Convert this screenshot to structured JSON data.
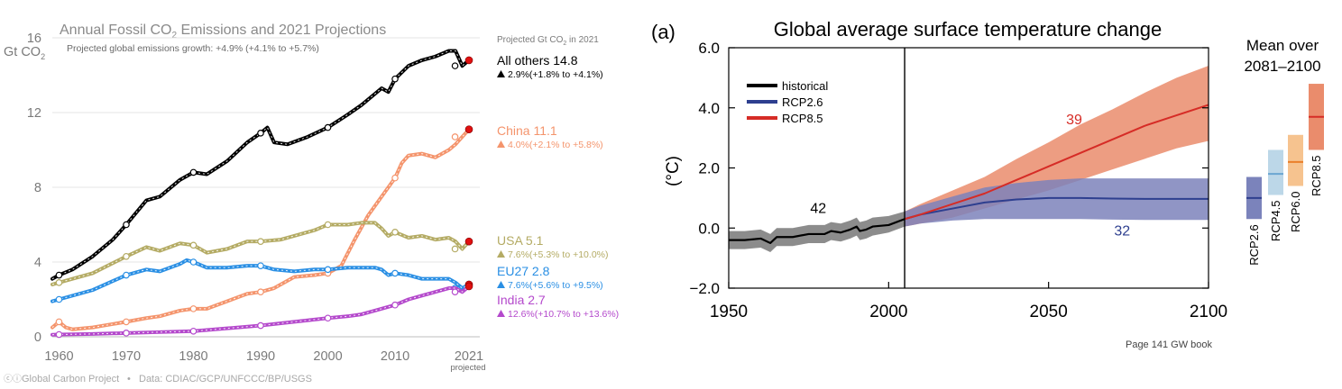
{
  "charts": {
    "left": {
      "title_main": "Annual Fossil CO",
      "title_sub": "2",
      "title_tail": " Emissions and 2021 Projections",
      "growth_note": "Projected global emissions growth: +4.9% (+4.1% to +5.7%)",
      "projected_header": "Projected Gt CO",
      "projected_header_sub": "2",
      "projected_header_tail": " in 2021",
      "yunit_main": "Gt CO",
      "yunit_sub": "2",
      "projected_tick_note": "projected",
      "footer_logo": "Global Carbon Project",
      "footer_data": "Data: CDIAC/GCP/UNFCCC/BP/USGS",
      "label_colors": {
        "All others": "#000000",
        "China": "#f4946c",
        "USA": "#b4ab64",
        "EU27": "#2a8fe4",
        "India": "#b449cc"
      },
      "legend": [
        {
          "name": "All others 14.8",
          "growth": "2.9%(+1.8% to +4.1%)",
          "color": "#000000"
        },
        {
          "name": "China 11.1",
          "growth": "4.0%(+2.1% to +5.8%)",
          "color": "#f4946c"
        },
        {
          "name": "USA 5.1",
          "growth": "7.6%(+5.3% to +10.0%)",
          "color": "#b4ab64"
        },
        {
          "name": "EU27 2.8",
          "growth": "7.6%(+5.6% to +9.5%)",
          "color": "#2a8fe4"
        },
        {
          "name": "India 2.7",
          "growth": "12.6%(+10.7% to +13.6%)",
          "color": "#b449cc"
        }
      ]
    },
    "right": {
      "panel_label": "(a)",
      "title": "Global average surface temperature change",
      "ylabel": "(°C)",
      "legend": [
        {
          "name": "historical",
          "color": "#000000"
        },
        {
          "name": "RCP2.6",
          "color": "#2e3f8f"
        },
        {
          "name": "RCP8.5",
          "color": "#d62c26"
        }
      ],
      "annotations": [
        {
          "text": "42",
          "color": "#000000"
        },
        {
          "text": "39",
          "color": "#d62c26"
        },
        {
          "text": "32",
          "color": "#2e3f8f"
        }
      ],
      "mean_title_line1": "Mean over",
      "mean_title_line2": "2081–2100",
      "page_note": "Page 141 GW book"
    }
  },
  "chart_data": [
    {
      "type": "line",
      "title": "Annual Fossil CO2 Emissions and 2021 Projections",
      "xlabel": "",
      "ylabel": "Gt CO2",
      "xlim": [
        1959,
        2021
      ],
      "ylim": [
        0,
        16
      ],
      "xticks": [
        1960,
        1970,
        1980,
        1990,
        2000,
        2010,
        2021
      ],
      "yticks": [
        0,
        4,
        8,
        12,
        16
      ],
      "grid": true,
      "legend_position": "right",
      "series": [
        {
          "name": "All others",
          "color": "#000000",
          "x": [
            1959,
            1960,
            1962,
            1965,
            1968,
            1970,
            1973,
            1975,
            1978,
            1980,
            1982,
            1985,
            1988,
            1990,
            1991,
            1992,
            1994,
            1997,
            2000,
            2003,
            2005,
            2007,
            2008,
            2009,
            2010,
            2012,
            2014,
            2016,
            2018,
            2019,
            2020,
            2021
          ],
          "values": [
            3.1,
            3.3,
            3.6,
            4.3,
            5.2,
            6.0,
            7.3,
            7.5,
            8.4,
            8.8,
            8.7,
            9.4,
            10.4,
            10.9,
            11.2,
            10.4,
            10.3,
            10.7,
            11.2,
            11.9,
            12.4,
            13.0,
            13.3,
            13.1,
            13.8,
            14.5,
            14.8,
            15.0,
            15.3,
            15.3,
            14.5,
            14.8
          ],
          "projection": 14.8
        },
        {
          "name": "China",
          "color": "#f4946c",
          "x": [
            1959,
            1960,
            1961,
            1962,
            1965,
            1970,
            1973,
            1975,
            1978,
            1980,
            1982,
            1985,
            1988,
            1990,
            1992,
            1995,
            1998,
            2000,
            2002,
            2004,
            2006,
            2008,
            2010,
            2011,
            2012,
            2014,
            2016,
            2018,
            2019,
            2020,
            2021
          ],
          "values": [
            0.5,
            0.8,
            0.5,
            0.4,
            0.5,
            0.8,
            1.0,
            1.1,
            1.4,
            1.5,
            1.5,
            1.9,
            2.3,
            2.4,
            2.6,
            3.2,
            3.3,
            3.4,
            3.8,
            5.2,
            6.5,
            7.5,
            8.5,
            9.3,
            9.7,
            9.8,
            9.6,
            10.0,
            10.3,
            10.7,
            11.1
          ],
          "projection": 11.1
        },
        {
          "name": "USA",
          "color": "#b4ab64",
          "x": [
            1959,
            1960,
            1965,
            1970,
            1973,
            1975,
            1978,
            1980,
            1982,
            1985,
            1988,
            1990,
            1993,
            1995,
            1998,
            2000,
            2003,
            2005,
            2007,
            2008,
            2009,
            2010,
            2012,
            2014,
            2016,
            2018,
            2019,
            2020,
            2021
          ],
          "values": [
            2.8,
            2.9,
            3.4,
            4.3,
            4.8,
            4.6,
            5.0,
            4.9,
            4.5,
            4.7,
            5.1,
            5.1,
            5.2,
            5.4,
            5.7,
            6.0,
            6.0,
            6.1,
            6.1,
            5.8,
            5.4,
            5.6,
            5.3,
            5.4,
            5.2,
            5.3,
            5.1,
            4.7,
            5.1
          ],
          "projection": 5.1
        },
        {
          "name": "EU27",
          "color": "#2a8fe4",
          "x": [
            1959,
            1960,
            1965,
            1970,
            1973,
            1975,
            1978,
            1979,
            1980,
            1982,
            1985,
            1988,
            1990,
            1992,
            1995,
            1998,
            2000,
            2003,
            2005,
            2007,
            2008,
            2009,
            2010,
            2012,
            2014,
            2016,
            2018,
            2019,
            2020,
            2021
          ],
          "values": [
            1.9,
            2.0,
            2.5,
            3.3,
            3.6,
            3.5,
            3.9,
            4.1,
            4.0,
            3.7,
            3.7,
            3.8,
            3.8,
            3.6,
            3.5,
            3.6,
            3.6,
            3.7,
            3.7,
            3.7,
            3.6,
            3.3,
            3.4,
            3.3,
            3.1,
            3.1,
            3.1,
            2.9,
            2.6,
            2.8
          ],
          "projection": 2.8
        },
        {
          "name": "India",
          "color": "#b449cc",
          "x": [
            1959,
            1960,
            1965,
            1970,
            1975,
            1980,
            1985,
            1990,
            1995,
            2000,
            2003,
            2005,
            2007,
            2010,
            2012,
            2014,
            2016,
            2018,
            2019,
            2020,
            2021
          ],
          "values": [
            0.11,
            0.12,
            0.15,
            0.2,
            0.25,
            0.3,
            0.45,
            0.6,
            0.8,
            1.0,
            1.1,
            1.2,
            1.4,
            1.7,
            2.0,
            2.2,
            2.4,
            2.6,
            2.6,
            2.4,
            2.7
          ],
          "projection": 2.7
        }
      ]
    },
    {
      "type": "area",
      "title": "Global average surface temperature change",
      "xlabel": "",
      "ylabel": "(°C)",
      "xlim": [
        1950,
        2100
      ],
      "ylim": [
        -2.0,
        6.0
      ],
      "xticks": [
        1950,
        2000,
        2050,
        2100
      ],
      "yticks": [
        -2.0,
        0.0,
        2.0,
        4.0,
        6.0
      ],
      "vertical_line_x": 2005,
      "legend_position": "top-left",
      "series": [
        {
          "name": "historical",
          "color": "#000000",
          "band_color": "#8c8c8c",
          "x": [
            1950,
            1955,
            1960,
            1963,
            1965,
            1970,
            1975,
            1980,
            1982,
            1985,
            1988,
            1990,
            1991,
            1993,
            1995,
            2000,
            2005
          ],
          "values": [
            -0.4,
            -0.4,
            -0.35,
            -0.5,
            -0.3,
            -0.3,
            -0.2,
            -0.2,
            -0.1,
            -0.15,
            -0.05,
            0.05,
            -0.1,
            -0.05,
            0.05,
            0.1,
            0.3
          ],
          "lower": [
            -0.7,
            -0.7,
            -0.65,
            -0.8,
            -0.6,
            -0.6,
            -0.5,
            -0.5,
            -0.4,
            -0.45,
            -0.35,
            -0.25,
            -0.4,
            -0.35,
            -0.25,
            -0.15,
            0.05
          ],
          "upper": [
            -0.1,
            -0.1,
            -0.05,
            -0.2,
            0.0,
            0.0,
            0.1,
            0.1,
            0.2,
            0.15,
            0.25,
            0.35,
            0.2,
            0.25,
            0.35,
            0.4,
            0.55
          ]
        },
        {
          "name": "RCP2.6",
          "color": "#2e3f8f",
          "band_color": "#7c83bb",
          "x": [
            2005,
            2010,
            2020,
            2030,
            2040,
            2050,
            2060,
            2070,
            2080,
            2090,
            2100
          ],
          "values": [
            0.3,
            0.45,
            0.65,
            0.85,
            0.95,
            1.0,
            1.0,
            0.98,
            0.97,
            0.97,
            0.97
          ],
          "lower": [
            0.05,
            0.15,
            0.25,
            0.3,
            0.3,
            0.3,
            0.3,
            0.28,
            0.27,
            0.27,
            0.27
          ],
          "upper": [
            0.55,
            0.75,
            1.05,
            1.35,
            1.5,
            1.6,
            1.65,
            1.65,
            1.65,
            1.65,
            1.65
          ]
        },
        {
          "name": "RCP8.5",
          "color": "#d62c26",
          "band_color": "#ea8c6c",
          "x": [
            2005,
            2010,
            2020,
            2030,
            2040,
            2050,
            2060,
            2070,
            2080,
            2090,
            2100
          ],
          "values": [
            0.3,
            0.45,
            0.8,
            1.15,
            1.6,
            2.05,
            2.5,
            2.95,
            3.4,
            3.75,
            4.1
          ],
          "lower": [
            0.05,
            0.15,
            0.35,
            0.65,
            0.95,
            1.25,
            1.6,
            1.95,
            2.3,
            2.65,
            2.9
          ],
          "upper": [
            0.55,
            0.8,
            1.25,
            1.7,
            2.3,
            2.85,
            3.45,
            3.95,
            4.5,
            5.0,
            5.4
          ]
        }
      ],
      "annotations": [
        {
          "text": "42",
          "x": 1978,
          "y": 0.5
        },
        {
          "text": "39",
          "x": 2058,
          "y": 3.45
        },
        {
          "text": "32",
          "x": 2073,
          "y": -0.25
        }
      ]
    },
    {
      "type": "bar",
      "title": "Mean over 2081–2100",
      "xlabel": "",
      "ylabel": "",
      "ylim": [
        -2.0,
        6.0
      ],
      "categories": [
        "RCP2.6",
        "RCP4.5",
        "RCP6.0",
        "RCP8.5"
      ],
      "series": [
        {
          "name": "mean",
          "values": [
            1.0,
            1.8,
            2.2,
            3.7
          ]
        },
        {
          "name": "low",
          "values": [
            0.3,
            1.1,
            1.4,
            2.6
          ]
        },
        {
          "name": "high",
          "values": [
            1.7,
            2.6,
            3.1,
            4.8
          ]
        }
      ],
      "colors": {
        "RCP2.6": {
          "band": "#7b83bb",
          "line": "#2e3f8f"
        },
        "RCP4.5": {
          "band": "#bcd7e8",
          "line": "#6aa6d1"
        },
        "RCP6.0": {
          "band": "#f6c38f",
          "line": "#ea7f2a"
        },
        "RCP8.5": {
          "band": "#ea8c6c",
          "line": "#d62c26"
        }
      }
    }
  ]
}
